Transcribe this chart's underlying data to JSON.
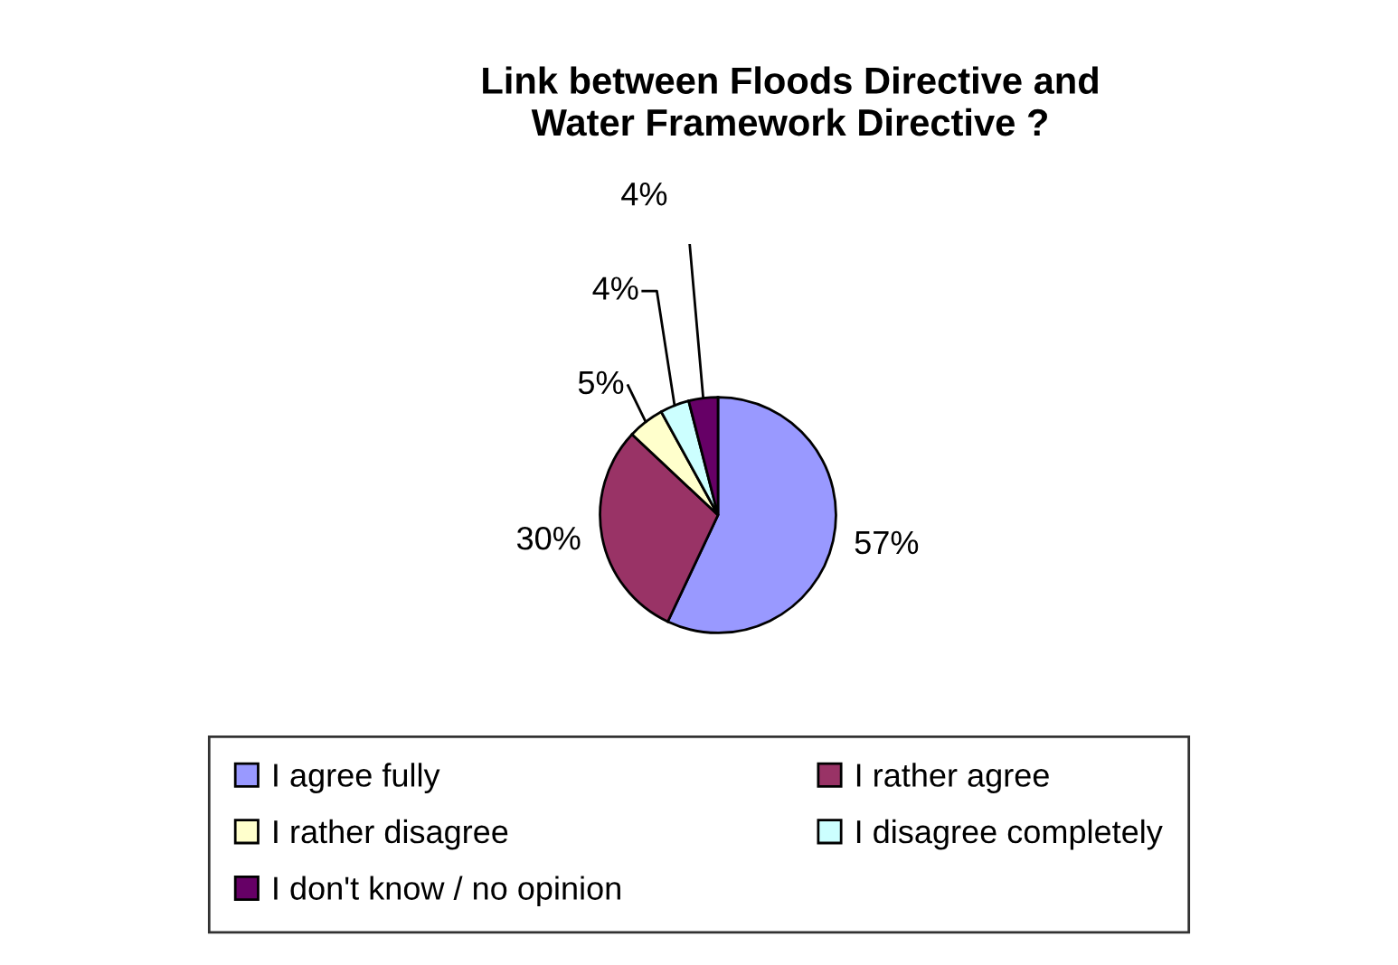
{
  "chart_data": {
    "type": "pie",
    "title": "Link between Floods Directive and\nWater Framework Directive ?",
    "categories": [
      "I agree fully",
      "I rather agree",
      "I rather disagree",
      "I disagree completely",
      "I don't know / no opinion"
    ],
    "values": [
      57,
      30,
      5,
      4,
      4
    ],
    "colors": [
      "#9999ff",
      "#993366",
      "#ffffcc",
      "#ccffff",
      "#660066"
    ],
    "value_labels": [
      "57%",
      "30%",
      "5%",
      "4%",
      "4%"
    ],
    "legend": "bottom"
  }
}
